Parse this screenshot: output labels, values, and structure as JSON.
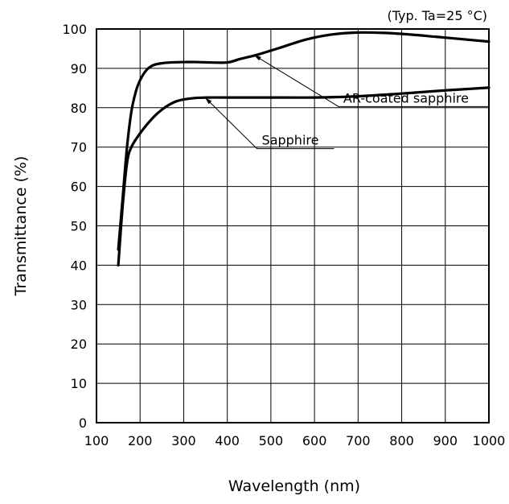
{
  "chart_data": {
    "type": "line",
    "xlabel": "Wavelength (nm)",
    "ylabel": "Transmittance (%)",
    "note": "(Typ. Ta=25 °C)",
    "xlim": [
      100,
      1000
    ],
    "ylim": [
      0,
      100
    ],
    "x_ticks": [
      100,
      200,
      300,
      400,
      500,
      600,
      700,
      800,
      900,
      1000
    ],
    "y_ticks": [
      0,
      10,
      20,
      30,
      40,
      50,
      60,
      70,
      80,
      90,
      100
    ],
    "grid": true,
    "line_color": "#000000",
    "series": [
      {
        "name": "AR-coated sapphire",
        "x": [
          150,
          160,
          170,
          180,
          190,
          200,
          215,
          230,
          250,
          270,
          300,
          330,
          360,
          400,
          430,
          470,
          520,
          580,
          640,
          700,
          760,
          820,
          880,
          940,
          1000
        ],
        "y": [
          44,
          57,
          70,
          79,
          84,
          87,
          89.6,
          90.8,
          91.3,
          91.5,
          91.6,
          91.6,
          91.5,
          91.5,
          92.4,
          93.5,
          95.2,
          97.3,
          98.6,
          99.1,
          99,
          98.6,
          98,
          97.4,
          96.8
        ]
      },
      {
        "name": "Sapphire",
        "x": [
          150,
          160,
          170,
          180,
          200,
          220,
          240,
          260,
          280,
          300,
          330,
          360,
          400,
          500,
          600,
          700,
          800,
          900,
          1000
        ],
        "y": [
          40,
          55,
          66,
          70,
          73.5,
          76.3,
          78.6,
          80.3,
          81.5,
          82.1,
          82.5,
          82.6,
          82.6,
          82.6,
          82.6,
          82.9,
          83.6,
          84.4,
          85.1
        ]
      }
    ],
    "annotations": [
      {
        "text": "AR-coated sapphire",
        "series": "AR-coated sapphire",
        "target": [
          461,
          93.4
        ],
        "elbow": [
          655,
          80.3
        ],
        "line_end": [
          1000,
          80.3
        ]
      },
      {
        "text": "Sapphire",
        "series": "Sapphire",
        "target": [
          349,
          82.6
        ],
        "elbow": [
          468,
          69.6
        ],
        "line_end": [
          645,
          69.6
        ]
      }
    ]
  }
}
